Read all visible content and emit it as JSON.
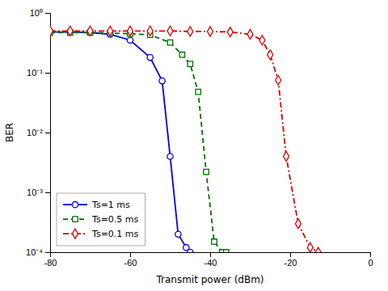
{
  "chart_data": {
    "type": "line",
    "xlabel": "Transmit power (dBm)",
    "ylabel": "BER",
    "log": "y",
    "grid": false,
    "legend": "lower left",
    "xlim": [
      -80,
      0
    ],
    "xticks": [
      -80,
      -60,
      -40,
      -20,
      0
    ],
    "ylim": [
      0.0001,
      1
    ],
    "yticks": [
      {
        "value": 0.0001,
        "label": "10⁻⁴"
      },
      {
        "value": 0.001,
        "label": "10⁻³"
      },
      {
        "value": 0.01,
        "label": "10⁻²"
      },
      {
        "value": 0.1,
        "label": "10⁻¹"
      },
      {
        "value": 1,
        "label": "10⁰"
      }
    ],
    "series": [
      {
        "name": "Ts=1 ms",
        "color": "#0000EE",
        "marker": "circle",
        "line_style": "solid",
        "x": [
          -80,
          -75,
          -70,
          -65,
          -60,
          -55,
          -52,
          -50,
          -48,
          -46,
          -45
        ],
        "values": [
          0.48,
          0.48,
          0.47,
          0.44,
          0.35,
          0.18,
          0.073,
          0.004,
          0.0002,
          0.00012,
          0.0001
        ]
      },
      {
        "name": "Ts=0.5 ms",
        "color": "#007000",
        "marker": "square",
        "line_style": "dashed",
        "x": [
          -80,
          -75,
          -70,
          -65,
          -60,
          -55,
          -50,
          -47,
          -45,
          -43,
          -41,
          -39,
          -37,
          -36
        ],
        "values": [
          0.47,
          0.47,
          0.47,
          0.46,
          0.45,
          0.43,
          0.32,
          0.2,
          0.14,
          0.048,
          0.0022,
          0.00015,
          0.0001,
          0.0001
        ]
      },
      {
        "name": "Ts=0.1 ms",
        "color": "#DD0000",
        "marker": "diamond",
        "line_style": "dashdot",
        "x": [
          -80,
          -75,
          -70,
          -65,
          -60,
          -55,
          -50,
          -45,
          -40,
          -35,
          -30,
          -27,
          -25,
          -23,
          -21,
          -18,
          -15,
          -13
        ],
        "values": [
          0.5,
          0.5,
          0.5,
          0.5,
          0.5,
          0.5,
          0.5,
          0.49,
          0.49,
          0.48,
          0.44,
          0.35,
          0.2,
          0.075,
          0.004,
          0.0003,
          0.00012,
          0.0001
        ]
      }
    ]
  }
}
